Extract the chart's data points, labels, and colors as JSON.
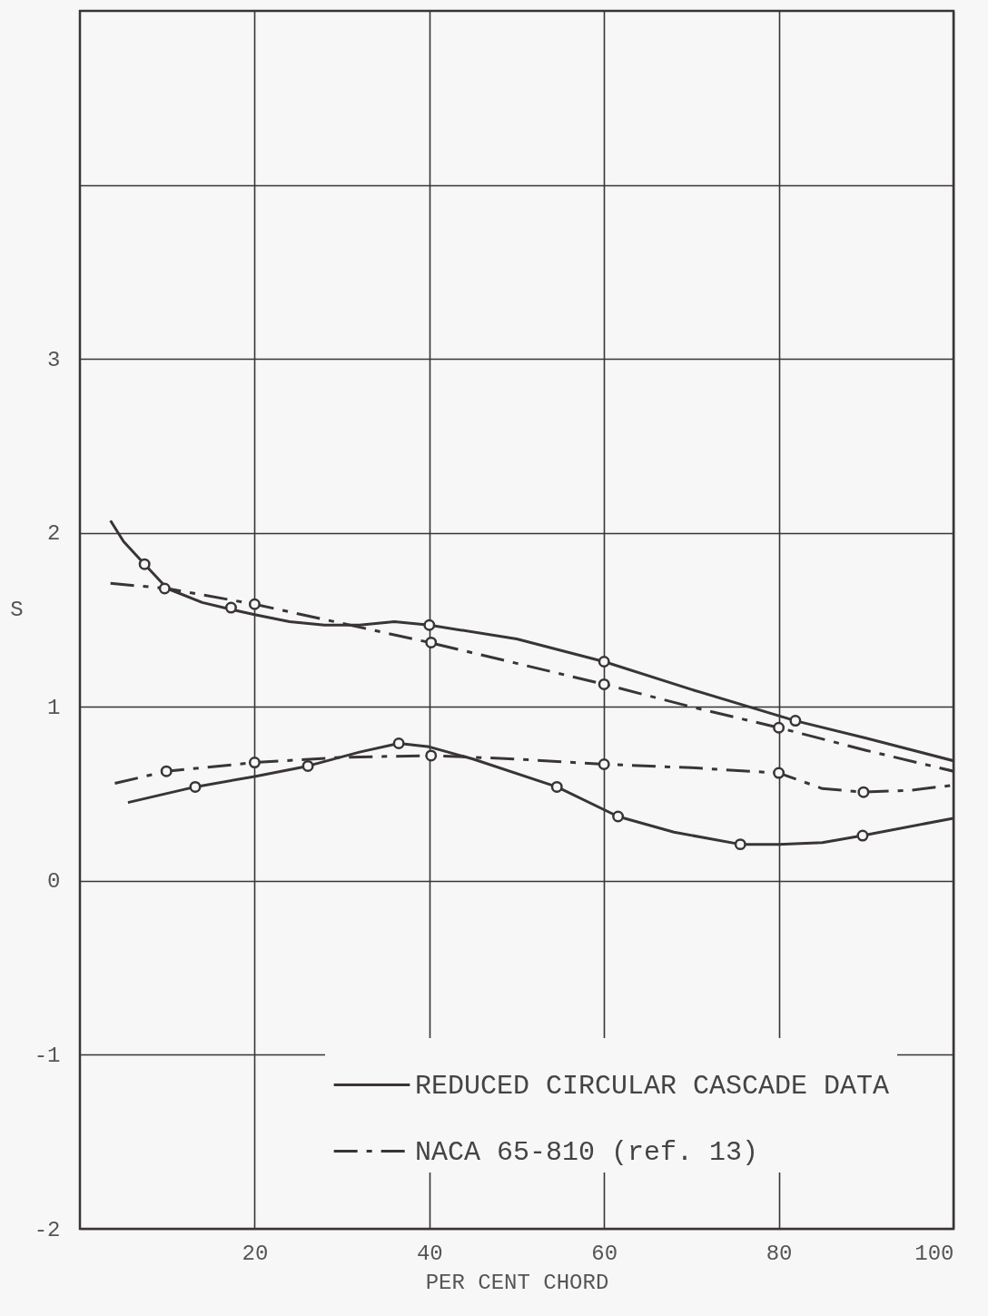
{
  "chart_data": {
    "type": "line",
    "xlabel": "PER CENT CHORD",
    "ylabel": "S",
    "xlim": [
      0,
      100
    ],
    "ylim": [
      -2,
      5
    ],
    "xticks": [
      20,
      40,
      60,
      80,
      100
    ],
    "yticks": [
      -2,
      -1,
      0,
      1,
      2,
      3,
      {
        "value": 4,
        "label": null
      }
    ],
    "grid": true,
    "legend": "bottom right",
    "series": [
      {
        "name": "REDUCED CIRCULAR CASCADE DATA",
        "color": "#3a3535",
        "line_style": "solid",
        "x": [
          3.5,
          5,
          7.4,
          10,
          14,
          17.3,
          20,
          24,
          28,
          32,
          36,
          40,
          50,
          60,
          70,
          81.9,
          90,
          100
        ],
        "values": [
          2.07,
          1.95,
          1.82,
          1.68,
          1.6,
          1.56,
          1.53,
          1.49,
          1.47,
          1.47,
          1.49,
          1.47,
          1.39,
          1.26,
          1.1,
          0.92,
          0.82,
          0.69
        ]
      },
      {
        "name": "NACA 65-810 (ref. 13)",
        "color": "#3a3535",
        "line_style": "dashed",
        "x": [
          3.5,
          10,
          20,
          30,
          40,
          50,
          60,
          70,
          80,
          90,
          100
        ],
        "values": [
          1.71,
          1.68,
          1.59,
          1.48,
          1.37,
          1.25,
          1.13,
          1.0,
          0.88,
          0.75,
          0.63
        ]
      },
      {
        "color": "#3a3535",
        "line_style": "dashed",
        "x": [
          4,
          9.9,
          20,
          30,
          40.2,
          50,
          60,
          70,
          80,
          85,
          89.7,
          95,
          100
        ],
        "values": [
          0.56,
          0.63,
          0.68,
          0.71,
          0.72,
          0.7,
          0.67,
          0.65,
          0.62,
          0.53,
          0.51,
          0.52,
          0.55
        ]
      },
      {
        "color": "#3a3535",
        "line_style": "solid",
        "x": [
          5.5,
          13.2,
          20,
          26.1,
          32,
          36.5,
          40,
          45,
          54.6,
          61.6,
          68,
          75.6,
          80,
          85,
          89.6,
          100
        ],
        "values": [
          0.45,
          0.54,
          0.6,
          0.66,
          0.74,
          0.79,
          0.77,
          0.7,
          0.54,
          0.37,
          0.28,
          0.21,
          0.21,
          0.22,
          0.26,
          0.36
        ]
      },
      {
        "type": "scatter",
        "color": "#3a3535",
        "marker": "circle",
        "x": [
          7.4,
          9.7,
          17.3,
          40,
          60,
          81.9
        ],
        "values": [
          1.82,
          1.68,
          1.57,
          1.47,
          1.26,
          0.92
        ]
      },
      {
        "type": "scatter",
        "color": "#3a3535",
        "marker": "circle",
        "x": [
          20,
          40.2,
          60,
          80
        ],
        "values": [
          1.59,
          1.37,
          1.13,
          0.88
        ]
      },
      {
        "type": "scatter",
        "color": "#3a3535",
        "marker": "circle",
        "x": [
          9.9,
          20,
          40.2,
          60,
          80,
          89.7
        ],
        "values": [
          0.63,
          0.68,
          0.72,
          0.67,
          0.62,
          0.51
        ]
      },
      {
        "type": "scatter",
        "color": "#3a3535",
        "marker": "circle",
        "x": [
          13.2,
          26.1,
          36.5,
          54.6,
          61.6,
          75.6,
          89.6
        ],
        "values": [
          0.54,
          0.66,
          0.79,
          0.54,
          0.37,
          0.21,
          0.26
        ]
      }
    ]
  }
}
